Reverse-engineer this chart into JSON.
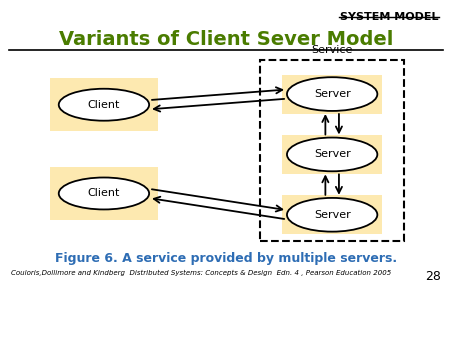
{
  "title": "Variants of Client Sever Model",
  "header": "SYSTEM MODEL",
  "bg_color": "#ffffff",
  "title_color": "#4a7c00",
  "header_color": "#000000",
  "fig_caption": "Figure 6. A service provided by multiple servers.",
  "fig_caption_color": "#2e6db4",
  "footer_text": "Couloris,Dollimore and Kindberg  Distributed Systems: Concepts & Design  Edn. 4 , Pearson Education 2005",
  "page_num": "28",
  "box_fill": "#fde9b0",
  "service_label": "Service",
  "client1_label": "Client",
  "client2_label": "Client",
  "server1_label": "Server",
  "server2_label": "Server",
  "server3_label": "Server"
}
